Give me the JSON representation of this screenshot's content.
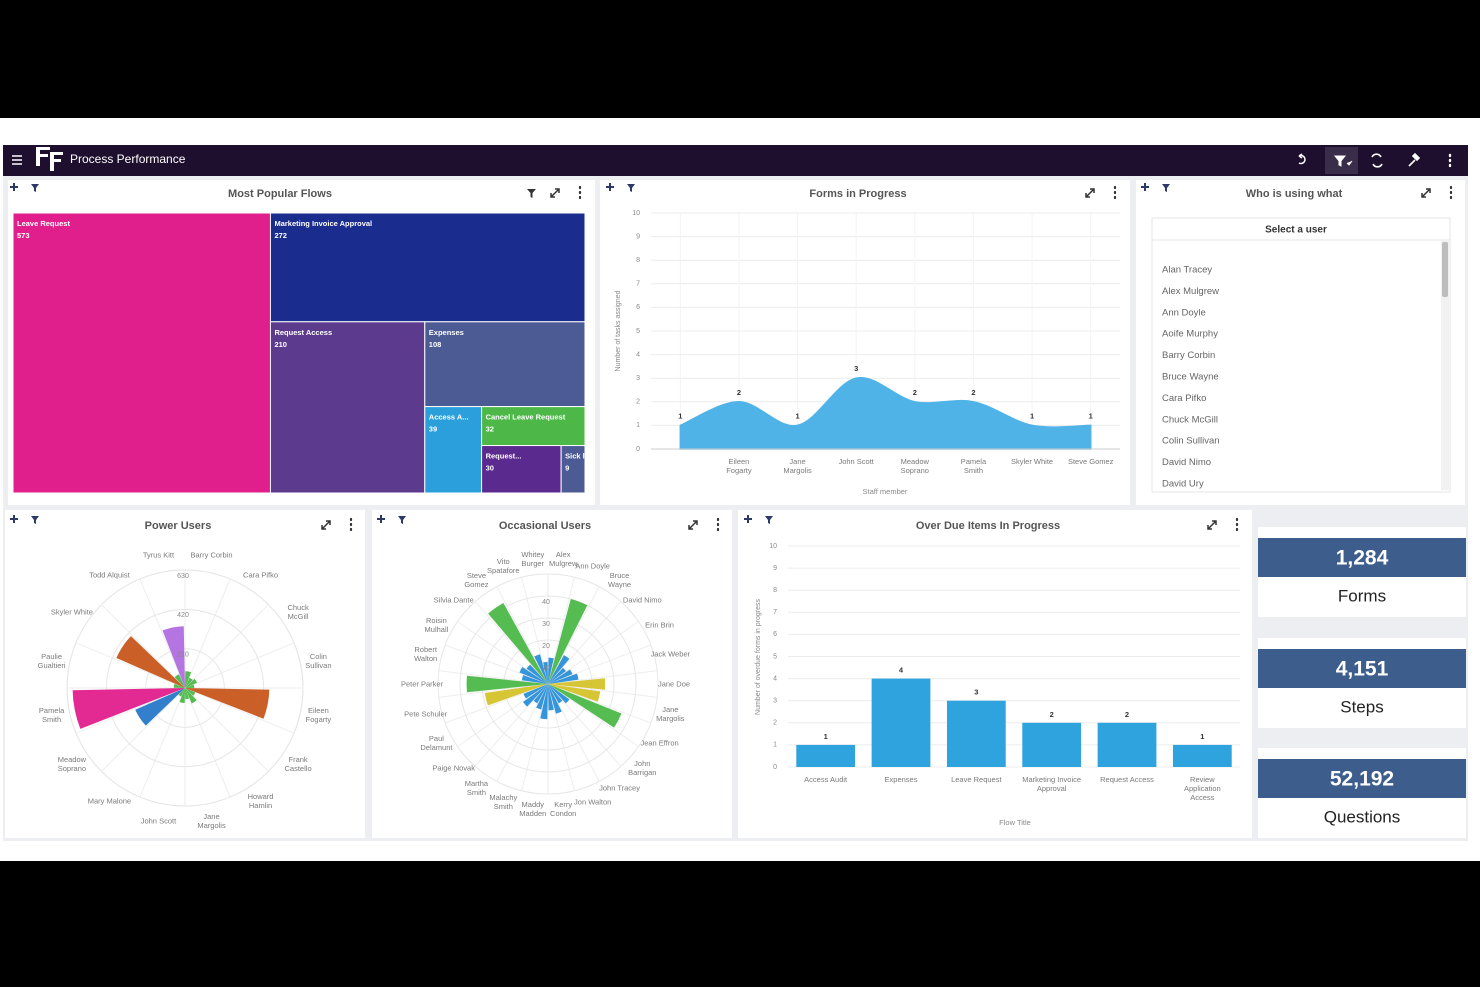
{
  "header": {
    "title": "Process Performance"
  },
  "chart_data": [
    {
      "type": "treemap",
      "title": "Most Popular Flows",
      "categories": [
        "Leave Request",
        "Marketing Invoice Approval",
        "Request Access",
        "Expenses",
        "Access A...",
        "Cancel Leave Request",
        "Request...",
        "Sick lea..."
      ],
      "values": [
        573,
        272,
        210,
        108,
        39,
        32,
        30,
        9
      ],
      "colors": [
        "#e01f8c",
        "#1b2c8f",
        "#5c3b8e",
        "#4c5b93",
        "#2b9fdc",
        "#4db748",
        "#5b2a8e",
        "#4c5b93"
      ]
    },
    {
      "type": "area",
      "title": "Forms in Progress",
      "categories": [
        null,
        "Eileen Fogarty",
        "Jane Margolis",
        "John Scott",
        "Meadow Soprano",
        "Pamela Smith",
        "Skyler White",
        "Steve Gomez"
      ],
      "values": [
        1,
        2,
        1,
        3,
        2,
        2,
        1,
        1
      ],
      "color": "#4fb3e8",
      "ylim": [
        0,
        10
      ],
      "yticks": [
        0,
        1,
        2,
        3,
        4,
        5,
        6,
        7,
        8,
        9,
        10
      ],
      "grid": true,
      "y_label": "Number of tasks assigned",
      "x_label": "Staff member"
    },
    {
      "type": "polar_bar",
      "title": "Power Users",
      "categories": [
        "Barry Corbin",
        "Cara Pifko",
        "Chuck McGill",
        "Colin Sullivan",
        "Eileen Fogarty",
        "Frank Castello",
        "Howard Hamlin",
        "Jane Margolis",
        "John Scott",
        "Mary Malone",
        "Meadow Soprano",
        "Pamela Smith",
        "Paulie Gualtieri",
        "Skyler White",
        "Todd Alquist",
        "Tyrus Kitt"
      ],
      "values": [
        90,
        60,
        70,
        50,
        450,
        60,
        90,
        60,
        80,
        50,
        290,
        600,
        60,
        400,
        80,
        330
      ],
      "colors": [
        "#4cb848",
        "#4cb848",
        "#4cb848",
        "#4cb848",
        "#c8561c",
        "#4cb848",
        "#4cb848",
        "#4cb848",
        "#4cb848",
        "#4cb848",
        "#2878c8",
        "#e01f8c",
        "#4cb848",
        "#c8561c",
        "#4cb848",
        "#b06de0"
      ],
      "rlim": [
        0,
        630
      ],
      "rticks": [
        210,
        420,
        630
      ]
    },
    {
      "type": "polar_bar",
      "title": "Occasional Users",
      "categories": [
        "Alex Mulgrew",
        "Ann Doyle",
        "Bruce Wayne",
        "David Nimo",
        "Erin Brin",
        "Jack Weber",
        "Jane Doe",
        "Jane Margolis",
        "Jean Effron",
        "John Barrigan",
        "John Tracey",
        "Jon Walton",
        "Kerry Condon",
        "Maddy Madden",
        "Malachy Smith",
        "Martha Smith",
        "Paige Novak",
        "Paul Delamunt",
        "Pete Schuler",
        "Peter Parker",
        "Robert Walton",
        "Roisin Mulhall",
        "Silvia Dante",
        "Steve Gomez",
        "Vito Spatafore",
        "Whitey Burger"
      ],
      "values": [
        12,
        40,
        15,
        10,
        12,
        14,
        26,
        24,
        36,
        12,
        10,
        14,
        12,
        16,
        12,
        10,
        14,
        12,
        29,
        37,
        12,
        14,
        12,
        42,
        14,
        10
      ],
      "colors": [
        "#2a8fd8",
        "#4cb848",
        "#2a8fd8",
        "#2a8fd8",
        "#2a8fd8",
        "#2a8fd8",
        "#d4c22a",
        "#d4c22a",
        "#4cb848",
        "#2a8fd8",
        "#2a8fd8",
        "#2a8fd8",
        "#2a8fd8",
        "#2a8fd8",
        "#2a8fd8",
        "#2a8fd8",
        "#2a8fd8",
        "#2a8fd8",
        "#d4c22a",
        "#4cb848",
        "#2a8fd8",
        "#2a8fd8",
        "#2a8fd8",
        "#4cb848",
        "#2a8fd8",
        "#2a8fd8"
      ],
      "rlim": [
        0,
        50
      ],
      "rticks": [
        10,
        20,
        30,
        40
      ]
    },
    {
      "type": "bar",
      "title": "Over Due Items In Progress",
      "categories": [
        "Access Audit",
        "Expenses",
        "Leave Request",
        "Marketing Invoice Approval",
        "Request Access",
        "Review Application Access"
      ],
      "values": [
        1,
        4,
        3,
        2,
        2,
        1
      ],
      "color": "#2ea3dd",
      "ylim": [
        0,
        10
      ],
      "yticks": [
        0,
        1,
        2,
        3,
        4,
        5,
        6,
        7,
        8,
        9,
        10
      ],
      "grid": true,
      "y_label": "Number of overdue forms in progress",
      "x_label": "Flow Title"
    }
  ],
  "user_panel": {
    "title": "Who is using what",
    "heading": "Select a user",
    "users": [
      "Alan Tracey",
      "Alex Mulgrew",
      "Ann Doyle",
      "Aoife Murphy",
      "Barry Corbin",
      "Bruce Wayne",
      "Cara Pifko",
      "Chuck McGill",
      "Colin Sullivan",
      "David Nimo",
      "David Ury"
    ]
  },
  "stats": [
    {
      "value": "1,284",
      "label": "Forms"
    },
    {
      "value": "4,151",
      "label": "Steps"
    },
    {
      "value": "52,192",
      "label": "Questions"
    }
  ]
}
